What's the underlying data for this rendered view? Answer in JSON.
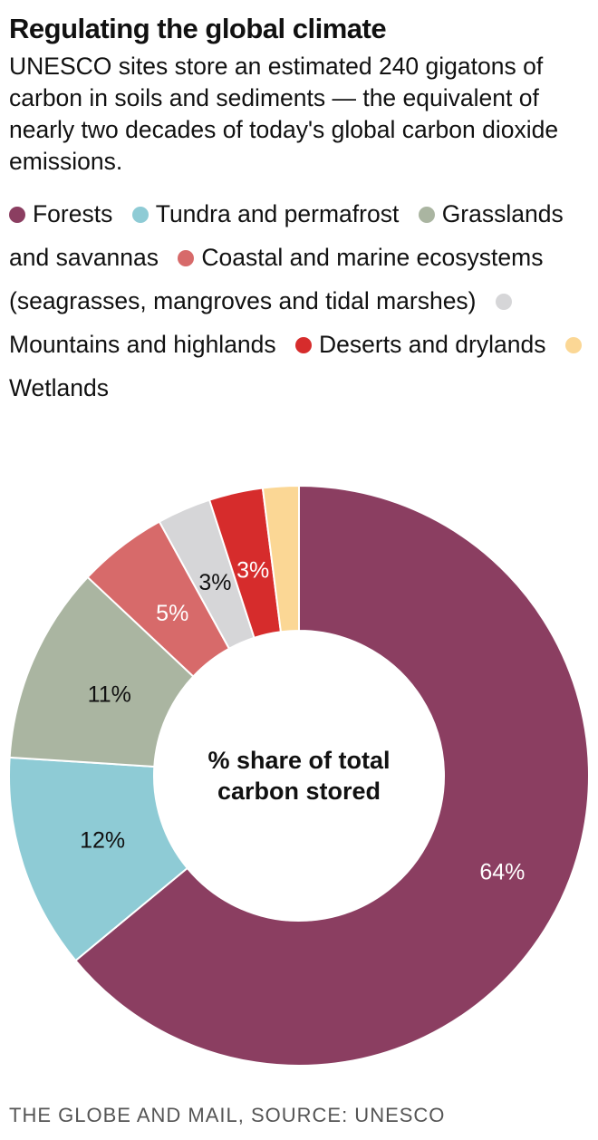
{
  "title": "Regulating the global climate",
  "subtitle": "UNESCO sites store an estimated 240 gigatons of carbon in soils and sediments — the equivalent of nearly two decades of today's global carbon dioxide emissions.",
  "source": "THE GLOBE AND MAIL, SOURCE: UNESCO",
  "chart_data": {
    "type": "pie",
    "style": "donut",
    "center_label": [
      "% share of total",
      "carbon stored"
    ],
    "legend_position": "top",
    "slices": [
      {
        "label": "Forests",
        "value": 64,
        "display": "64%",
        "color": "#8b3e61",
        "text_color": "#ffffff"
      },
      {
        "label": "Tundra and permafrost",
        "value": 12,
        "display": "12%",
        "color": "#8ecbd5",
        "text_color": "#111111"
      },
      {
        "label": "Grasslands and savannas",
        "value": 11,
        "display": "11%",
        "color": "#aab5a1",
        "text_color": "#111111"
      },
      {
        "label": "Coastal and marine ecosystems (seagrasses, mangroves and tidal marshes)",
        "value": 5,
        "display": "5%",
        "color": "#d76a6a",
        "text_color": "#ffffff"
      },
      {
        "label": "Mountains and highlands",
        "value": 3,
        "display": "3%",
        "color": "#d6d6d8",
        "text_color": "#111111"
      },
      {
        "label": "Deserts and drylands",
        "value": 3,
        "display": "3%",
        "color": "#d62c2c",
        "text_color": "#ffffff"
      },
      {
        "label": "Wetlands",
        "value": 2,
        "display": "",
        "color": "#fbd795",
        "text_color": "#111111"
      }
    ]
  }
}
